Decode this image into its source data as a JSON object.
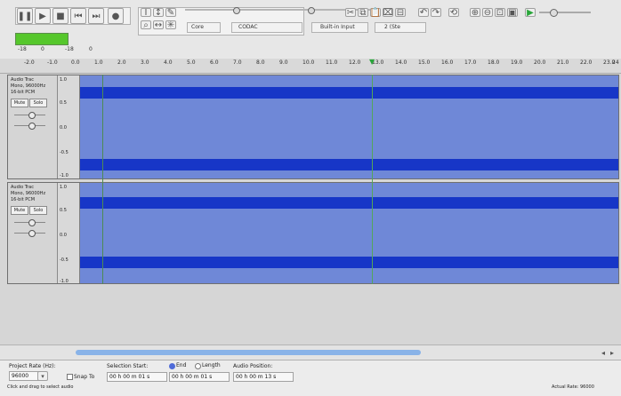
{
  "toolbar": {
    "device_host": "Core",
    "input_device": "CODAC",
    "record_input": "Built-in Input",
    "channels": "2 (Ste"
  },
  "meter": {
    "left_values": [
      "-18",
      "0",
      "-18",
      "0"
    ]
  },
  "ruler": {
    "ticks": [
      "-2.0",
      "-1.0",
      "0.0",
      "1.0",
      "2.0",
      "3.0",
      "4.0",
      "5.0",
      "6.0",
      "7.0",
      "8.0",
      "9.0",
      "10.0",
      "11.0",
      "12.0",
      "13.0",
      "14.0",
      "15.0",
      "16.0",
      "17.0",
      "18.0",
      "19.0",
      "20.0",
      "21.0",
      "22.0",
      "23.0",
      "24"
    ]
  },
  "tracks": [
    {
      "name": "Audio Trac",
      "info1": "Mono, 96000Hz",
      "info2": "16-bit PCM",
      "mute": "Mute",
      "solo": "Solo",
      "scale": [
        "1.0",
        "0.5",
        "0.0",
        "-0.5",
        "-1.0"
      ]
    },
    {
      "name": "Audio Trac",
      "info1": "Mono, 96000Hz",
      "info2": "16-bit PCM",
      "mute": "Mute",
      "solo": "Solo",
      "scale": [
        "1.0",
        "0.5",
        "0.0",
        "-0.5",
        "-1.0"
      ]
    }
  ],
  "bottom": {
    "project_rate_label": "Project Rate (Hz):",
    "project_rate_value": "96000",
    "selection_start_label": "Selection Start:",
    "snap_to_label": "Snap To",
    "end_label": "End",
    "length_label": "Length",
    "audio_position_label": "Audio Position:",
    "selection_start_value": "00 h 00 m 01 s",
    "selection_end_value": "00 h 00 m 01 s",
    "audio_position_value": "00 h 00 m 13 s",
    "status_left": "Click and drag to select audio",
    "status_right": "Actual Rate: 96000"
  },
  "icons": {
    "pause": "pause-icon",
    "play": "play-icon",
    "stop": "stop-icon",
    "skip_start": "skip-start-icon",
    "skip_end": "skip-end-icon",
    "record": "record-icon"
  },
  "colors": {
    "waveform": "#1736c7",
    "waveform_bg": "#6f88d7",
    "meter": "#56c72c",
    "scroll_thumb": "#89b3e8"
  }
}
